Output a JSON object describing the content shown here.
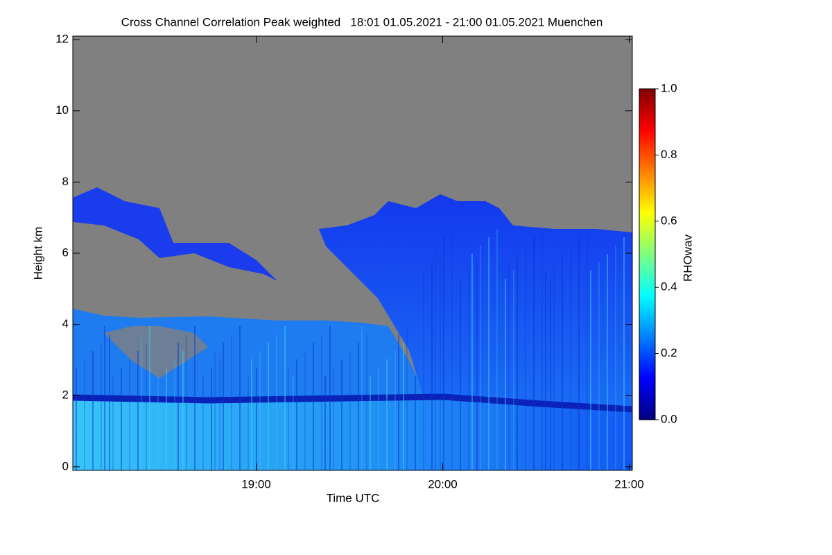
{
  "chart_data": {
    "type": "heatmap",
    "title": "Cross Channel Correlation Peak weighted   18:01 01.05.2021 - 21:00 01.05.2021 Muenchen",
    "xlabel": "Time UTC",
    "ylabel": "Height km",
    "xlim": [
      18.0167,
      21.0167
    ],
    "xticks": [
      {
        "value": 19,
        "label": "19:00"
      },
      {
        "value": 20,
        "label": "20:00"
      },
      {
        "value": 21,
        "label": "21:00"
      }
    ],
    "ylim": [
      -0.1,
      12.1
    ],
    "yticks": [
      0,
      2,
      4,
      6,
      8,
      10,
      12
    ],
    "nodata_color": "#808080",
    "colorbar": {
      "label": "RHOwav",
      "colormap": "jet",
      "lim": [
        0,
        1
      ],
      "ticks": [
        {
          "value": 0,
          "label": "0.0"
        },
        {
          "value": 0.2,
          "label": "0.2"
        },
        {
          "value": 0.4,
          "label": "0.4"
        },
        {
          "value": 0.6,
          "label": "0.6"
        },
        {
          "value": 0.8,
          "label": "0.8"
        },
        {
          "value": 1,
          "label": "1.0"
        }
      ]
    }
  }
}
